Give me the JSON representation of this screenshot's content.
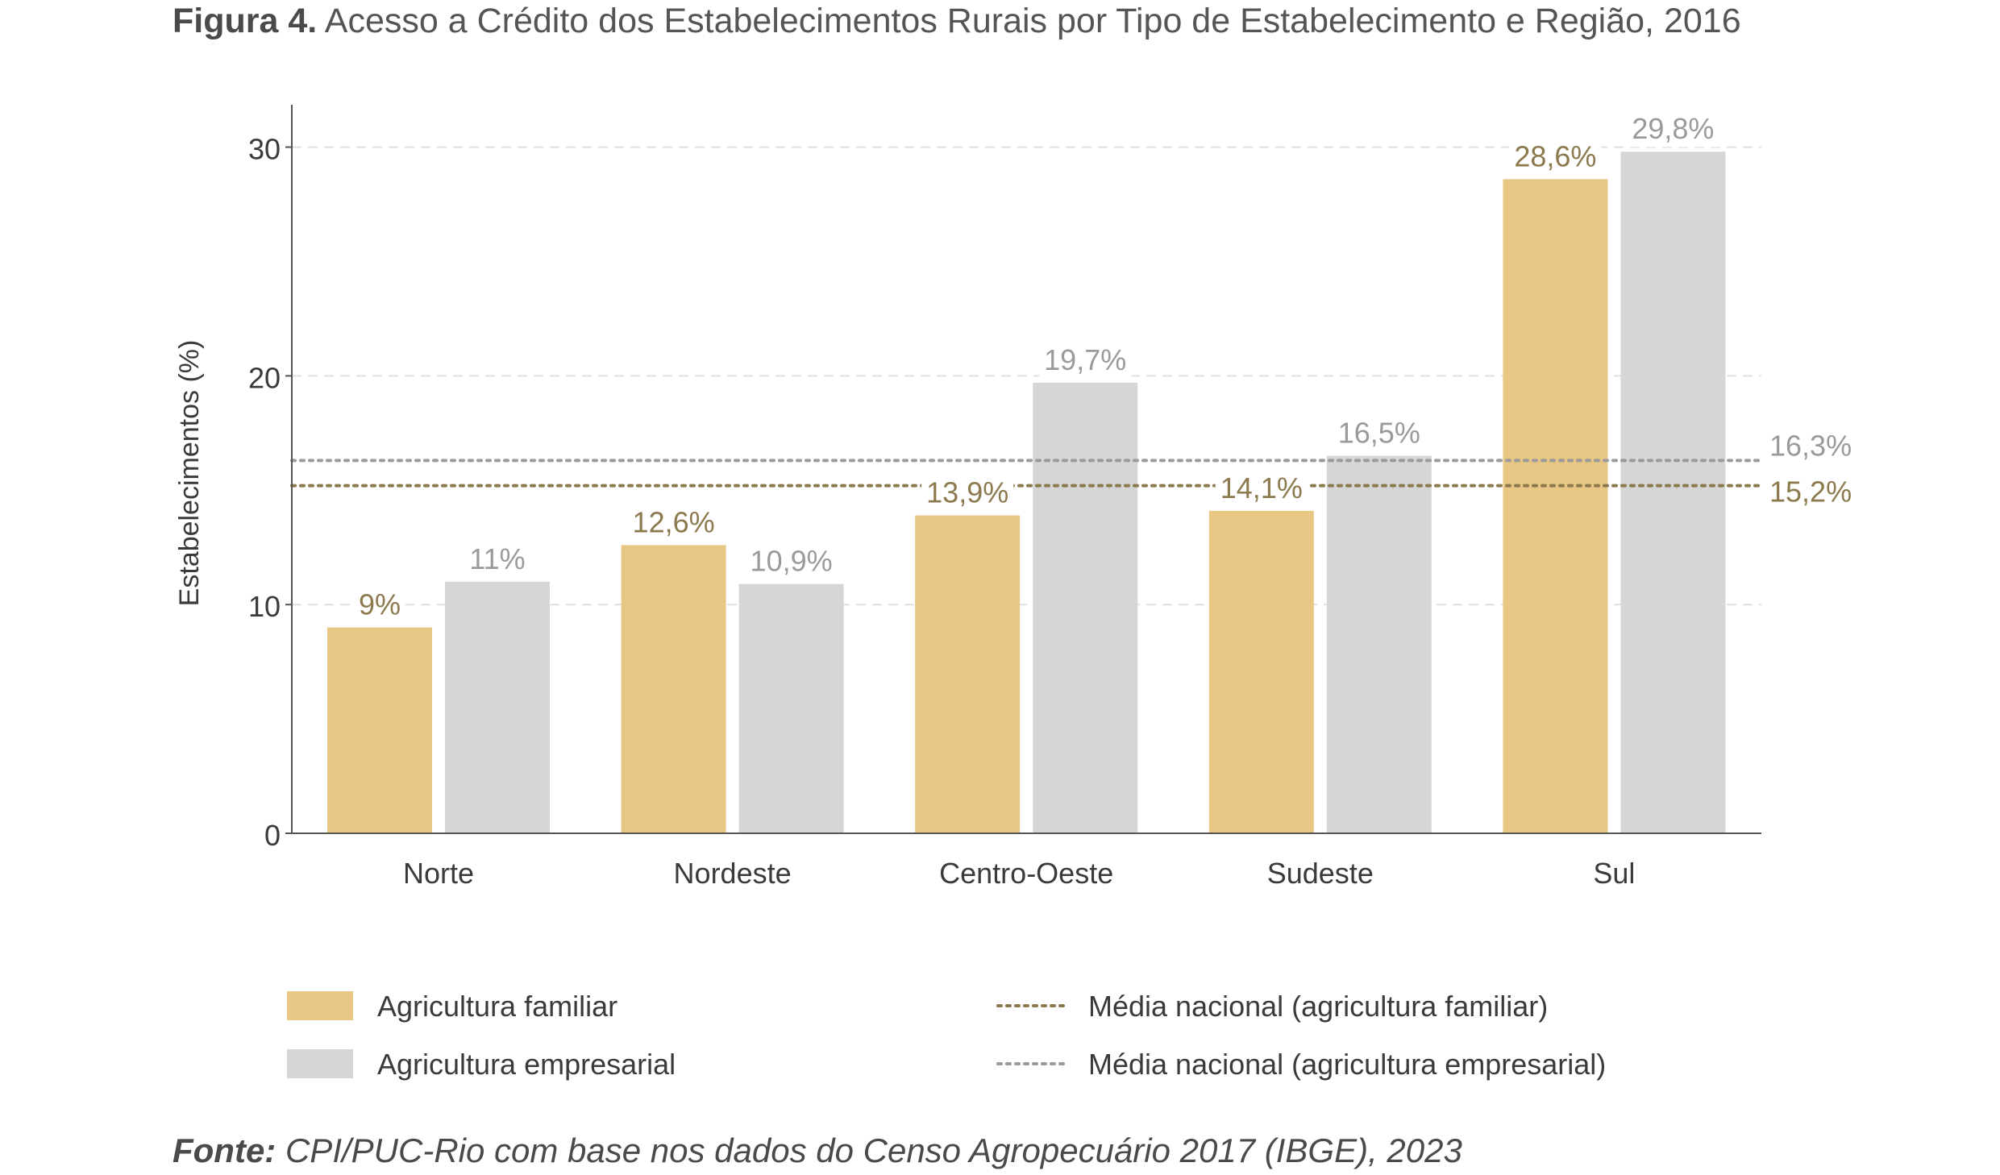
{
  "title": {
    "prefix": "Figura 4.",
    "text": "Acesso a Crédito dos Estabelecimentos Rurais por Tipo de Estabelecimento e Região, 2016"
  },
  "source": {
    "prefix": "Fonte:",
    "text": "CPI/PUC-Rio com base nos dados do Censo Agropecuário 2017 (IBGE), 2023"
  },
  "colors": {
    "familiar": "#E8C683",
    "empresarial": "#D6D6D6",
    "familiar_label": "#8C7A4E",
    "empresarial_label": "#9A9A9A",
    "avg_familiar": "#8C7A4E",
    "avg_empresarial": "#9A9A9A"
  },
  "chart_data": {
    "type": "bar",
    "title": "Acesso a Crédito dos Estabelecimentos Rurais por Tipo de Estabelecimento e Região, 2016",
    "xlabel": "",
    "ylabel": "Estabelecimentos (%)",
    "ylim": [
      0,
      31.5
    ],
    "yticks": [
      0,
      10,
      20,
      30
    ],
    "grid": "horizontal dashed",
    "categories": [
      "Norte",
      "Nordeste",
      "Centro-Oeste",
      "Sudeste",
      "Sul"
    ],
    "series": [
      {
        "name": "Agricultura familiar",
        "values": [
          9.0,
          12.6,
          13.9,
          14.1,
          28.6
        ],
        "labels": [
          "9%",
          "12,6%",
          "13,9%",
          "14,1%",
          "28,6%"
        ]
      },
      {
        "name": "Agricultura empresarial",
        "values": [
          11.0,
          10.9,
          19.7,
          16.5,
          29.8
        ],
        "labels": [
          "11%",
          "10,9%",
          "19,7%",
          "16,5%",
          "29,8%"
        ]
      }
    ],
    "reference_lines": [
      {
        "name": "Média nacional (agricultura familiar)",
        "value": 15.2,
        "label": "15,2%"
      },
      {
        "name": "Média nacional (agricultura empresarial)",
        "value": 16.3,
        "label": "16,3%"
      }
    ],
    "legend_position": "bottom"
  }
}
